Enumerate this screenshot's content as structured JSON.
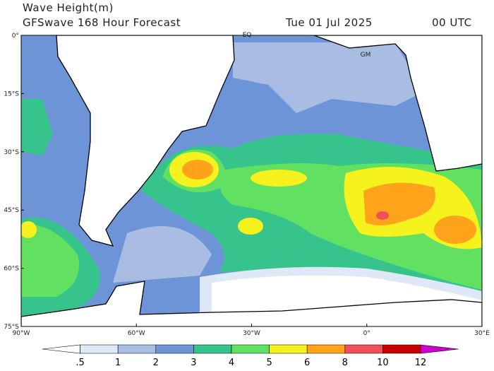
{
  "header": {
    "title": "Wave Height(m)",
    "subtitle": "GFSwave 168 Hour Forecast",
    "date": "Tue 01 Jul 2025",
    "time": "00 UTC"
  },
  "map": {
    "lat_labels": [
      "0°",
      "15°S",
      "30°S",
      "45°S",
      "60°S",
      "75°S"
    ],
    "lon_labels": [
      "90°W",
      "60°W",
      "30°W",
      "0°",
      "30°E"
    ],
    "place_labels": [
      "EQ",
      "GM"
    ]
  },
  "colorbar": {
    "labels": [
      ".5",
      "1",
      "2",
      "3",
      "4",
      "5",
      "6",
      "8",
      "10",
      "12"
    ],
    "colors": [
      "#ffffff",
      "#dfe8f6",
      "#a9bde2",
      "#6d94d6",
      "#36c38c",
      "#62e062",
      "#f6f21e",
      "#ffa41a",
      "#f0505a",
      "#c80000",
      "#d000d0"
    ]
  }
}
